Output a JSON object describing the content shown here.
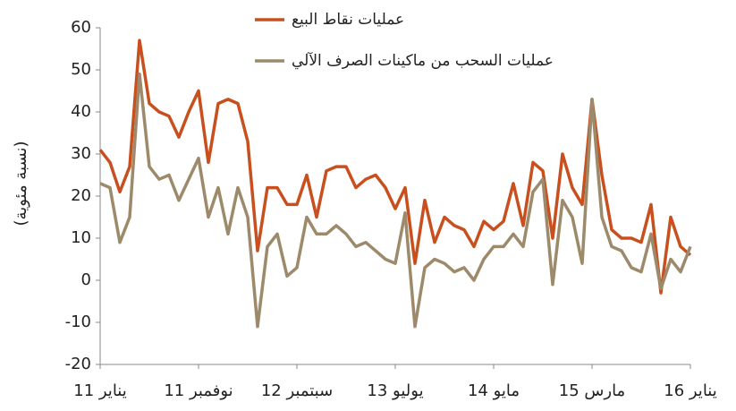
{
  "chart_data": {
    "type": "line",
    "y_label": "(نسبة مئوية)",
    "categories": [
      "يناير 11",
      null,
      null,
      null,
      null,
      null,
      null,
      null,
      null,
      null,
      "نوفمبر 11",
      null,
      null,
      null,
      null,
      null,
      null,
      null,
      null,
      null,
      "سبتمبر 12",
      null,
      null,
      null,
      null,
      null,
      null,
      null,
      null,
      null,
      "يوليو 13",
      null,
      null,
      null,
      null,
      null,
      null,
      null,
      null,
      null,
      "مايو 14",
      null,
      null,
      null,
      null,
      null,
      null,
      null,
      null,
      null,
      "مارس 15",
      null,
      null,
      null,
      null,
      null,
      null,
      null,
      null,
      null,
      "يناير 16"
    ],
    "series": [
      {
        "name": "عمليات نقاط البيع",
        "color": "#c8501e",
        "values": [
          31,
          28,
          21,
          27,
          57,
          42,
          40,
          39,
          34,
          40,
          45,
          28,
          42,
          43,
          42,
          33,
          7,
          22,
          22,
          18,
          18,
          25,
          15,
          26,
          27,
          27,
          22,
          24,
          25,
          22,
          17,
          22,
          4,
          19,
          9,
          15,
          13,
          12,
          8,
          14,
          12,
          14,
          23,
          13,
          28,
          26,
          10,
          30,
          22,
          18,
          43,
          25,
          12,
          10,
          10,
          9,
          18,
          -3,
          15,
          8,
          6
        ]
      },
      {
        "name": "عمليات السحب من ماكينات الصرف الآلي",
        "color": "#9c8a6a",
        "values": [
          23,
          22,
          9,
          15,
          49,
          27,
          24,
          25,
          19,
          24,
          29,
          15,
          22,
          11,
          22,
          15,
          -11,
          8,
          11,
          1,
          3,
          15,
          11,
          11,
          13,
          11,
          8,
          9,
          7,
          5,
          4,
          16,
          -11,
          3,
          5,
          4,
          2,
          3,
          0,
          5,
          8,
          8,
          11,
          8,
          21,
          24,
          -1,
          19,
          15,
          4,
          43,
          15,
          8,
          7,
          3,
          2,
          11,
          -2,
          5,
          2,
          8
        ]
      }
    ],
    "ylim": [
      -20,
      60
    ],
    "yticks": [
      -20,
      -10,
      0,
      10,
      20,
      30,
      40,
      50,
      60
    ],
    "grid": false,
    "legend": "top"
  }
}
